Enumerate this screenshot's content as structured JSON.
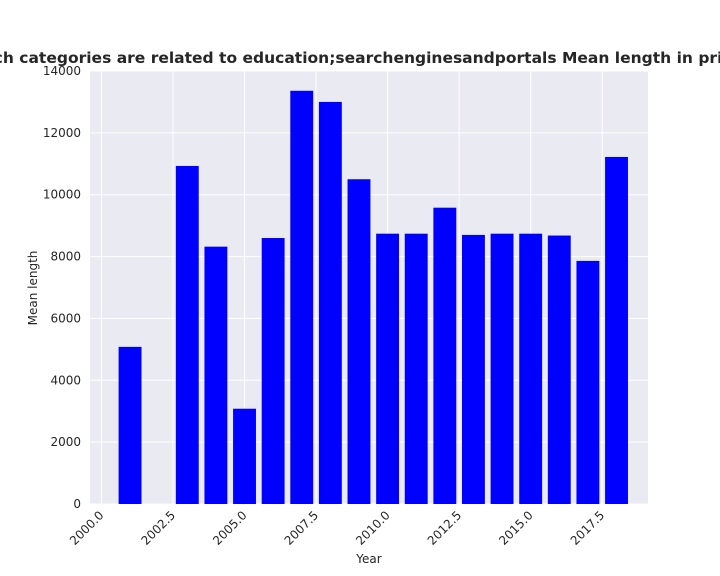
{
  "chart_data": {
    "type": "bar",
    "title": "Websites which categories are related to education;searchenginesandportals Mean length in privacy policies",
    "xlabel": "Year",
    "ylabel": "Mean length",
    "x": [
      2001,
      2003,
      2004,
      2005,
      2006,
      2007,
      2008,
      2009,
      2010,
      2011,
      2012,
      2013,
      2014,
      2015,
      2016,
      2017,
      2018
    ],
    "values": [
      5080,
      10930,
      8320,
      3080,
      8600,
      13360,
      13000,
      10500,
      8740,
      8740,
      9580,
      8700,
      8740,
      8740,
      8680,
      7860,
      11220
    ],
    "xlim": [
      1999.6,
      2019.1
    ],
    "ylim": [
      0,
      14000
    ],
    "xticks": [
      "2000.0",
      "2002.5",
      "2005.0",
      "2007.5",
      "2010.0",
      "2012.5",
      "2015.0",
      "2017.5"
    ],
    "yticks": [
      "0",
      "2000",
      "4000",
      "6000",
      "8000",
      "10000",
      "12000",
      "14000"
    ],
    "bar_color": "#0000ff",
    "background_color": "#eaeaf2",
    "grid": true,
    "legend": "none"
  }
}
